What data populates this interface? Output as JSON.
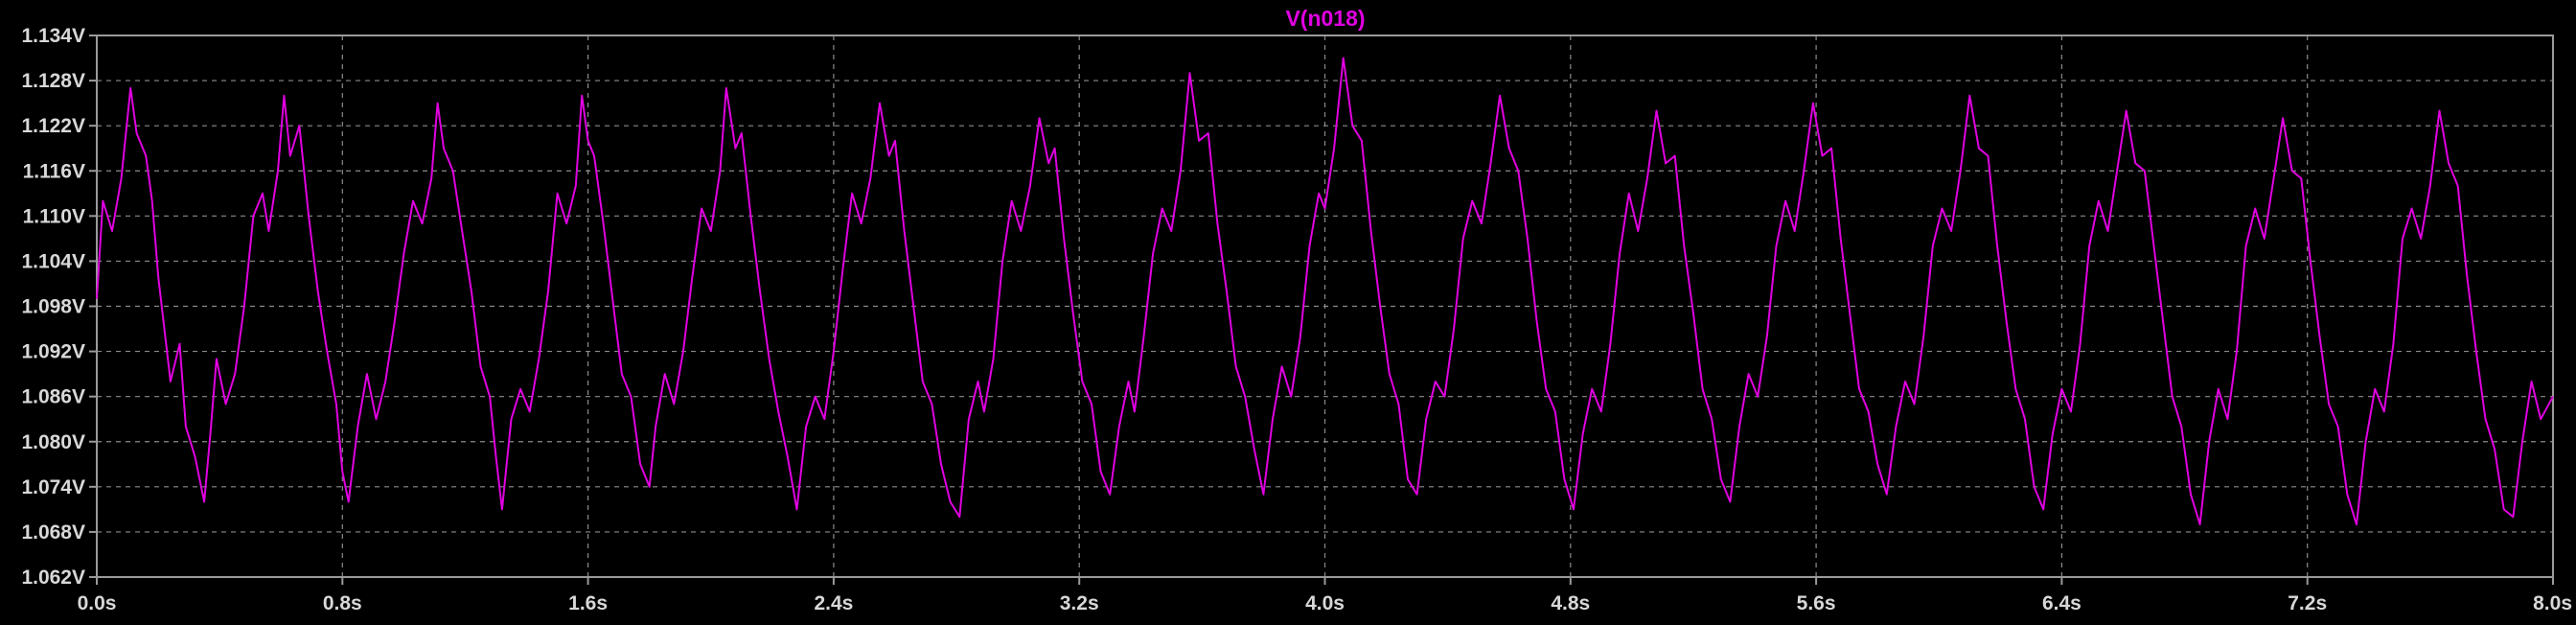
{
  "colors": {
    "background": "#000000",
    "frame": "#9a9a9a",
    "grid": "#8c8c8c",
    "text": "#d8d8d8",
    "trace": "#e000e0"
  },
  "chart_data": {
    "type": "line",
    "title": "V(n018)",
    "xlabel": "",
    "ylabel": "",
    "xlim": [
      0.0,
      8.0
    ],
    "ylim": [
      1.062,
      1.134
    ],
    "x_ticks": [
      0.0,
      0.8,
      1.6,
      2.4,
      3.2,
      4.0,
      4.8,
      5.6,
      6.4,
      7.2,
      8.0
    ],
    "x_tick_labels": [
      "0.0s",
      "0.8s",
      "1.6s",
      "2.4s",
      "3.2s",
      "4.0s",
      "4.8s",
      "5.6s",
      "6.4s",
      "7.2s",
      "8.0s"
    ],
    "y_ticks": [
      1.062,
      1.068,
      1.074,
      1.08,
      1.086,
      1.092,
      1.098,
      1.104,
      1.11,
      1.116,
      1.122,
      1.128,
      1.134
    ],
    "y_tick_labels": [
      "1.062V",
      "1.068V",
      "1.074V",
      "1.080V",
      "1.086V",
      "1.092V",
      "1.098V",
      "1.104V",
      "1.110V",
      "1.116V",
      "1.122V",
      "1.128V",
      "1.134V"
    ],
    "grid": true,
    "series": [
      {
        "name": "V(n018)",
        "color": "#e000e0",
        "x": [
          0.0,
          0.02,
          0.05,
          0.08,
          0.11,
          0.13,
          0.16,
          0.18,
          0.2,
          0.24,
          0.27,
          0.29,
          0.32,
          0.35,
          0.37,
          0.39,
          0.42,
          0.45,
          0.48,
          0.51,
          0.54,
          0.56,
          0.59,
          0.61,
          0.63,
          0.66,
          0.69,
          0.72,
          0.75,
          0.78,
          0.8,
          0.82,
          0.85,
          0.88,
          0.91,
          0.94,
          0.97,
          1.0,
          1.03,
          1.06,
          1.09,
          1.11,
          1.13,
          1.16,
          1.19,
          1.22,
          1.25,
          1.28,
          1.3,
          1.32,
          1.35,
          1.38,
          1.41,
          1.44,
          1.47,
          1.5,
          1.53,
          1.56,
          1.58,
          1.6,
          1.62,
          1.65,
          1.68,
          1.71,
          1.74,
          1.77,
          1.8,
          1.82,
          1.85,
          1.88,
          1.91,
          1.94,
          1.97,
          2.0,
          2.03,
          2.05,
          2.08,
          2.1,
          2.13,
          2.16,
          2.19,
          2.22,
          2.25,
          2.28,
          2.31,
          2.34,
          2.37,
          2.4,
          2.43,
          2.46,
          2.49,
          2.52,
          2.55,
          2.58,
          2.6,
          2.63,
          2.66,
          2.69,
          2.72,
          2.75,
          2.78,
          2.81,
          2.84,
          2.87,
          2.89,
          2.92,
          2.95,
          2.98,
          3.01,
          3.04,
          3.07,
          3.1,
          3.12,
          3.15,
          3.18,
          3.21,
          3.24,
          3.27,
          3.3,
          3.33,
          3.36,
          3.38,
          3.41,
          3.44,
          3.47,
          3.5,
          3.53,
          3.56,
          3.59,
          3.62,
          3.65,
          3.68,
          3.71,
          3.74,
          3.77,
          3.8,
          3.83,
          3.86,
          3.89,
          3.92,
          3.95,
          3.98,
          4.0,
          4.03,
          4.06,
          4.09,
          4.12,
          4.15,
          4.18,
          4.21,
          4.24,
          4.27,
          4.3,
          4.33,
          4.36,
          4.39,
          4.42,
          4.45,
          4.48,
          4.51,
          4.54,
          4.57,
          4.6,
          4.63,
          4.66,
          4.69,
          4.72,
          4.75,
          4.78,
          4.81,
          4.84,
          4.87,
          4.9,
          4.93,
          4.96,
          4.99,
          5.02,
          5.05,
          5.08,
          5.11,
          5.14,
          5.17,
          5.2,
          5.23,
          5.26,
          5.29,
          5.32,
          5.35,
          5.38,
          5.41,
          5.44,
          5.47,
          5.5,
          5.53,
          5.56,
          5.59,
          5.62,
          5.65,
          5.68,
          5.71,
          5.74,
          5.77,
          5.8,
          5.83,
          5.86,
          5.89,
          5.92,
          5.95,
          5.98,
          6.01,
          6.04,
          6.07,
          6.1,
          6.13,
          6.16,
          6.19,
          6.22,
          6.25,
          6.28,
          6.31,
          6.34,
          6.37,
          6.4,
          6.43,
          6.46,
          6.49,
          6.52,
          6.55,
          6.58,
          6.61,
          6.64,
          6.67,
          6.7,
          6.73,
          6.76,
          6.79,
          6.82,
          6.85,
          6.88,
          6.91,
          6.94,
          6.97,
          7.0,
          7.03,
          7.06,
          7.09,
          7.12,
          7.15,
          7.18,
          7.21,
          7.24,
          7.27,
          7.3,
          7.33,
          7.36,
          7.39,
          7.42,
          7.45,
          7.48,
          7.51,
          7.54,
          7.57,
          7.6,
          7.63,
          7.66,
          7.69,
          7.72,
          7.75,
          7.78,
          7.81,
          7.84,
          7.87,
          7.9,
          7.93,
          7.96,
          8.0
        ],
        "y": [
          1.099,
          1.112,
          1.108,
          1.115,
          1.127,
          1.121,
          1.118,
          1.112,
          1.102,
          1.088,
          1.093,
          1.082,
          1.078,
          1.072,
          1.081,
          1.091,
          1.085,
          1.089,
          1.098,
          1.11,
          1.113,
          1.108,
          1.116,
          1.126,
          1.118,
          1.122,
          1.11,
          1.1,
          1.092,
          1.085,
          1.076,
          1.072,
          1.082,
          1.089,
          1.083,
          1.088,
          1.096,
          1.105,
          1.112,
          1.109,
          1.115,
          1.125,
          1.119,
          1.116,
          1.108,
          1.1,
          1.09,
          1.086,
          1.078,
          1.071,
          1.083,
          1.087,
          1.084,
          1.091,
          1.1,
          1.113,
          1.109,
          1.114,
          1.126,
          1.12,
          1.118,
          1.109,
          1.099,
          1.089,
          1.086,
          1.077,
          1.074,
          1.082,
          1.089,
          1.085,
          1.092,
          1.102,
          1.111,
          1.108,
          1.116,
          1.127,
          1.119,
          1.121,
          1.11,
          1.1,
          1.091,
          1.084,
          1.078,
          1.071,
          1.082,
          1.086,
          1.083,
          1.092,
          1.103,
          1.113,
          1.109,
          1.115,
          1.125,
          1.118,
          1.12,
          1.108,
          1.098,
          1.088,
          1.085,
          1.077,
          1.072,
          1.07,
          1.083,
          1.088,
          1.084,
          1.091,
          1.104,
          1.112,
          1.108,
          1.114,
          1.123,
          1.117,
          1.119,
          1.107,
          1.097,
          1.088,
          1.085,
          1.076,
          1.073,
          1.082,
          1.088,
          1.084,
          1.094,
          1.105,
          1.111,
          1.108,
          1.116,
          1.129,
          1.12,
          1.121,
          1.109,
          1.1,
          1.09,
          1.086,
          1.079,
          1.073,
          1.083,
          1.09,
          1.086,
          1.094,
          1.106,
          1.113,
          1.111,
          1.119,
          1.131,
          1.122,
          1.12,
          1.108,
          1.098,
          1.089,
          1.085,
          1.075,
          1.073,
          1.083,
          1.088,
          1.086,
          1.095,
          1.107,
          1.112,
          1.109,
          1.117,
          1.126,
          1.119,
          1.116,
          1.107,
          1.096,
          1.087,
          1.084,
          1.075,
          1.071,
          1.081,
          1.087,
          1.084,
          1.093,
          1.105,
          1.113,
          1.108,
          1.115,
          1.124,
          1.117,
          1.118,
          1.106,
          1.097,
          1.087,
          1.083,
          1.075,
          1.072,
          1.082,
          1.089,
          1.086,
          1.094,
          1.106,
          1.112,
          1.108,
          1.116,
          1.125,
          1.118,
          1.119,
          1.107,
          1.097,
          1.087,
          1.084,
          1.077,
          1.073,
          1.082,
          1.088,
          1.085,
          1.094,
          1.106,
          1.111,
          1.108,
          1.116,
          1.126,
          1.119,
          1.118,
          1.106,
          1.096,
          1.087,
          1.083,
          1.074,
          1.071,
          1.081,
          1.087,
          1.084,
          1.093,
          1.106,
          1.112,
          1.108,
          1.116,
          1.124,
          1.117,
          1.116,
          1.106,
          1.096,
          1.086,
          1.082,
          1.073,
          1.069,
          1.08,
          1.087,
          1.083,
          1.092,
          1.106,
          1.111,
          1.107,
          1.115,
          1.123,
          1.116,
          1.115,
          1.104,
          1.094,
          1.085,
          1.082,
          1.073,
          1.069,
          1.08,
          1.087,
          1.084,
          1.093,
          1.107,
          1.111,
          1.107,
          1.114,
          1.124,
          1.117,
          1.114,
          1.102,
          1.092,
          1.083,
          1.079,
          1.071,
          1.07,
          1.08,
          1.088,
          1.083,
          1.086
        ]
      }
    ]
  }
}
